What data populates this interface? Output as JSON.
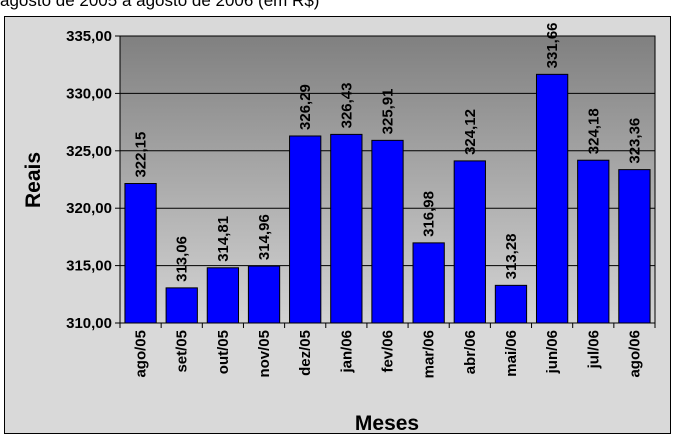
{
  "caption": "agosto de 2005 a agosto de 2006 (em R$)",
  "chart_data": {
    "type": "bar",
    "title": "",
    "xlabel": "Meses",
    "ylabel": "Reais",
    "ylim": [
      310,
      335
    ],
    "yticks": [
      310,
      315,
      320,
      325,
      330,
      335
    ],
    "ytick_labels": [
      "310,00",
      "315,00",
      "320,00",
      "325,00",
      "330,00",
      "335,00"
    ],
    "categories": [
      "ago/05",
      "set/05",
      "out/05",
      "nov/05",
      "dez/05",
      "jan/06",
      "fev/06",
      "mar/06",
      "abr/06",
      "mai/06",
      "jun/06",
      "jul/06",
      "ago/06"
    ],
    "values": [
      322.15,
      313.06,
      314.81,
      314.96,
      326.29,
      326.43,
      325.91,
      316.98,
      324.12,
      313.28,
      331.66,
      324.18,
      323.36
    ],
    "value_labels": [
      "322,15",
      "313,06",
      "314,81",
      "314,96",
      "326,29",
      "326,43",
      "325,91",
      "316,98",
      "324,12",
      "313,28",
      "331,66",
      "324,18",
      "323,36"
    ],
    "grid": true,
    "legend": "none",
    "bar_color": "#0000ff",
    "plot_gradient_top": "#808080",
    "plot_gradient_bottom": "#d4d4d4"
  }
}
